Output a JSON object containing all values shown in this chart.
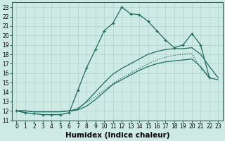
{
  "xlabel": "Humidex (Indice chaleur)",
  "background_color": "#ceeae4",
  "grid_color": "#b0d4cc",
  "line_color": "#1e6b5e",
  "xlim": [
    -0.5,
    23.5
  ],
  "ylim": [
    11,
    23.5
  ],
  "xticks": [
    0,
    1,
    2,
    3,
    4,
    5,
    6,
    7,
    8,
    9,
    10,
    11,
    12,
    13,
    14,
    15,
    16,
    17,
    18,
    19,
    20,
    21,
    22,
    23
  ],
  "yticks": [
    11,
    12,
    13,
    14,
    15,
    16,
    17,
    18,
    19,
    20,
    21,
    22,
    23
  ],
  "tick_fontsize": 5.5,
  "label_fontsize": 7.5,
  "line_jagged_x": [
    0,
    1,
    2,
    3,
    4,
    5,
    6,
    7,
    8,
    9,
    10,
    11,
    12,
    13,
    14,
    15,
    16,
    17,
    18,
    19,
    20,
    21,
    22
  ],
  "line_jagged_y": [
    12,
    11.8,
    11.7,
    11.6,
    11.6,
    11.6,
    11.8,
    14.2,
    16.6,
    18.5,
    20.5,
    21.3,
    23.0,
    22.3,
    22.2,
    21.5,
    20.5,
    19.5,
    18.7,
    19.0,
    20.2,
    19.0,
    15.5
  ],
  "line_mid_x": [
    0,
    1,
    2,
    3,
    4,
    5,
    6,
    7,
    8,
    9,
    10,
    11,
    12,
    13,
    14,
    15,
    16,
    17,
    18,
    19,
    20,
    21,
    22,
    23
  ],
  "line_mid_y": [
    12,
    12,
    11.9,
    11.9,
    11.9,
    11.9,
    12.0,
    12.1,
    12.5,
    13.2,
    14.0,
    14.8,
    15.3,
    15.8,
    16.3,
    16.7,
    17.0,
    17.2,
    17.3,
    17.4,
    17.5,
    16.7,
    15.5,
    15.3
  ],
  "line_upper_x": [
    0,
    1,
    2,
    3,
    4,
    5,
    6,
    7,
    8,
    9,
    10,
    11,
    12,
    13,
    14,
    15,
    16,
    17,
    18,
    19,
    20,
    21,
    22,
    23
  ],
  "line_upper_y": [
    12,
    12,
    11.9,
    11.9,
    11.9,
    11.9,
    12.0,
    12.2,
    13.0,
    14.0,
    15.0,
    15.9,
    16.5,
    17.0,
    17.5,
    18.0,
    18.3,
    18.5,
    18.6,
    18.6,
    18.7,
    18.0,
    16.7,
    15.5
  ],
  "line_diag_x": [
    0,
    1,
    2,
    3,
    4,
    5,
    6,
    7,
    8,
    9,
    10,
    11,
    12,
    13,
    14,
    15,
    16,
    17,
    18,
    19,
    20,
    21,
    22
  ],
  "line_diag_y": [
    12,
    11.8,
    11.7,
    11.6,
    11.6,
    11.6,
    11.8,
    12.3,
    12.9,
    13.5,
    14.2,
    14.9,
    15.5,
    16.0,
    16.5,
    17.0,
    17.4,
    17.7,
    17.9,
    18.0,
    18.1,
    16.5,
    15.5
  ]
}
